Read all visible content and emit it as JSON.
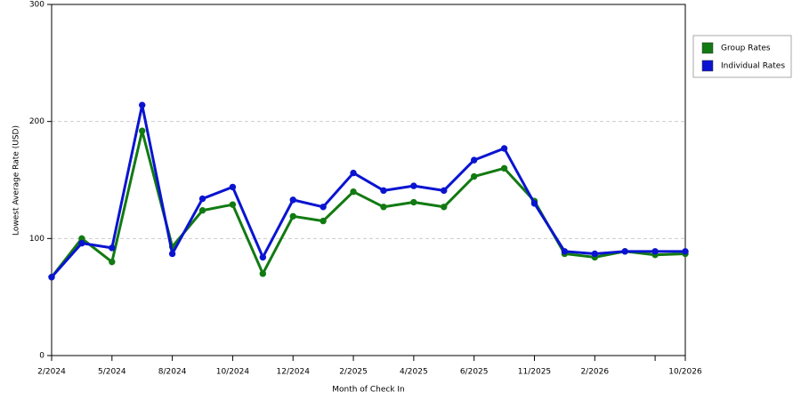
{
  "chart_data": {
    "type": "line",
    "x_label": "Month of Check In",
    "y_label": "Lowest Average Rate (USD)",
    "categories": [
      "2/2024",
      null,
      "5/2024",
      null,
      "8/2024",
      null,
      "10/2024",
      null,
      "12/2024",
      null,
      "2/2025",
      null,
      "4/2025",
      null,
      "6/2025",
      null,
      "11/2025",
      null,
      "2/2026",
      null,
      null,
      "10/2026"
    ],
    "series": [
      {
        "name": "Group Rates",
        "color": "#127a12",
        "values": [
          67,
          100,
          80,
          192,
          93,
          124,
          129,
          70,
          119,
          115,
          140,
          127,
          131,
          127,
          153,
          160,
          132,
          87,
          84,
          89,
          86,
          87
        ]
      },
      {
        "name": "Individual Rates",
        "color": "#0a14d0",
        "values": [
          67,
          96,
          92,
          214,
          87,
          134,
          144,
          84,
          133,
          127,
          156,
          141,
          145,
          141,
          167,
          177,
          130,
          89,
          87,
          89,
          89,
          89
        ]
      }
    ],
    "ylim": [
      0,
      300
    ],
    "yticks": [
      0,
      100,
      200,
      300
    ],
    "grid": true,
    "legend": "right"
  }
}
